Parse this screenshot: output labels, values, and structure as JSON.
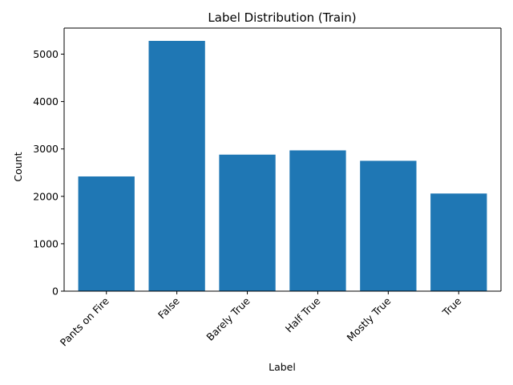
{
  "chart_data": {
    "type": "bar",
    "title": "Label Distribution (Train)",
    "xlabel": "Label",
    "ylabel": "Count",
    "categories": [
      "Pants on Fire",
      "False",
      "Barely True",
      "Half True",
      "Mostly True",
      "True"
    ],
    "values": [
      2420,
      5280,
      2880,
      2970,
      2750,
      2060
    ],
    "ylim": [
      0,
      5550
    ],
    "yticks": [
      0,
      1000,
      2000,
      3000,
      4000,
      5000
    ],
    "grid": false,
    "bar_color": "#1f77b4"
  }
}
